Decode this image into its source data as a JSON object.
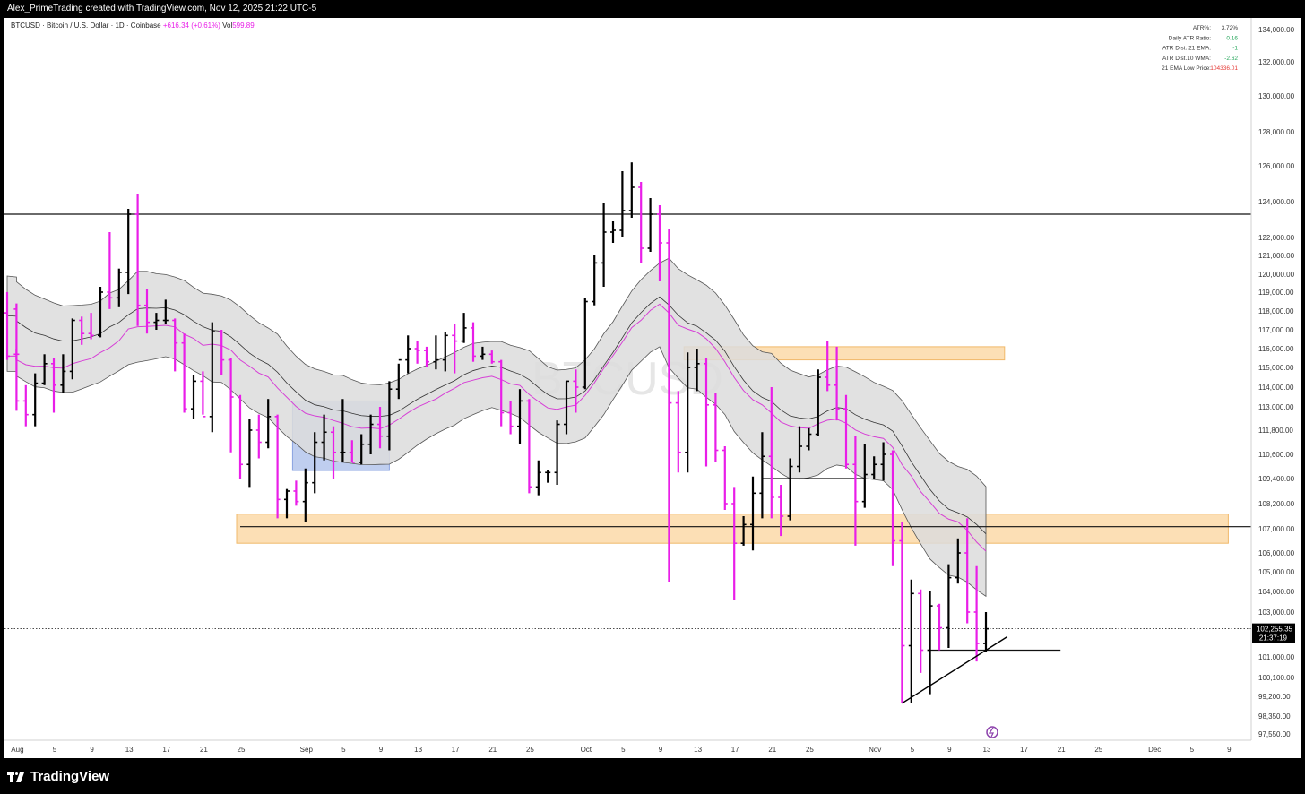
{
  "top_caption": "Alex_PrimeTrading created with TradingView.com, Nov 12, 2025 21:22 UTC-5",
  "footer_brand": "TradingView",
  "header": {
    "symbol": "BTCUSD · Bitcoin / U.S. Dollar · 1D · Coinbase",
    "change": "+616.34 (+0.61%)",
    "vol_label": "Vol",
    "vol_value": "599.89"
  },
  "watermark": "BTCUSD",
  "atr_table": [
    {
      "label": "ATR%:",
      "value": "3.72%",
      "color": "#333333"
    },
    {
      "label": "Daily ATR Ratio:",
      "value": "0.16",
      "color": "#26a65b"
    },
    {
      "label": "ATR Dist. 21 EMA:",
      "value": "-1",
      "color": "#26a65b"
    },
    {
      "label": "ATR Dist.10 WMA:",
      "value": "-2.62",
      "color": "#26a65b"
    },
    {
      "label": "21 EMA Low Price:",
      "value": "104336.01",
      "color": "#e53935"
    }
  ],
  "price_axis": {
    "ticks": [
      "134,000.00",
      "132,000.00",
      "130,000.00",
      "128,000.00",
      "126,000.00",
      "124,000.00",
      "122,000.00",
      "121,000.00",
      "120,000.00",
      "119,000.00",
      "118,000.00",
      "117,000.00",
      "116,000.00",
      "115,000.00",
      "114,000.00",
      "113,000.00",
      "111,800.00",
      "110,600.00",
      "109,400.00",
      "108,200.00",
      "107,000.00",
      "106,000.00",
      "105,000.00",
      "104,000.00",
      "103,000.00",
      "101,000.00",
      "100,100.00",
      "99,200.00",
      "98,350.00",
      "97,550.00"
    ],
    "current_price": "102,255.35",
    "countdown": "21:37:19"
  },
  "time_axis": {
    "ticks": [
      "Aug",
      "5",
      "9",
      "13",
      "17",
      "21",
      "25",
      "Sep",
      "5",
      "9",
      "13",
      "17",
      "21",
      "25",
      "Oct",
      "5",
      "9",
      "13",
      "17",
      "21",
      "25",
      "Nov",
      "5",
      "9",
      "13",
      "17",
      "21",
      "25",
      "Dec",
      "5",
      "9"
    ]
  },
  "colors": {
    "bullish": "#000000",
    "bearish": "#e91ee8",
    "ema": "#d63fd6",
    "band_fill": "#dcdcdc",
    "zone_orange": "#fbd9a8",
    "zone_blue": "#a9bdea",
    "accent_purple": "#8e44ad"
  },
  "chart_data": {
    "type": "ohlc",
    "title": "BTCUSD · Bitcoin / U.S. Dollar · 1D · Coinbase",
    "xlabel": "",
    "ylabel": "",
    "ylim": [
      97550,
      134000
    ],
    "y_scale": "log-style (non-uniform ticks)",
    "grid": false,
    "legend": "none",
    "bars": [
      {
        "date": "Jul 30",
        "o": 117900,
        "h": 119000,
        "l": 115400,
        "c": 115600
      },
      {
        "date": "Jul 31",
        "o": 118100,
        "h": 118400,
        "l": 115400,
        "c": 115700
      },
      {
        "date": "Aug 1",
        "o": 115700,
        "h": 116000,
        "l": 112800,
        "c": 113300
      },
      {
        "date": "Aug 2",
        "o": 113300,
        "h": 114100,
        "l": 112000,
        "c": 112600
      },
      {
        "date": "Aug 3",
        "o": 112600,
        "h": 114700,
        "l": 112000,
        "c": 114200
      },
      {
        "date": "Aug 4",
        "o": 114200,
        "h": 115700,
        "l": 114100,
        "c": 115200
      },
      {
        "date": "Aug 5",
        "o": 115200,
        "h": 115500,
        "l": 112700,
        "c": 114100
      },
      {
        "date": "Aug 6",
        "o": 114100,
        "h": 115700,
        "l": 113700,
        "c": 114800
      },
      {
        "date": "Aug 7",
        "o": 114800,
        "h": 117600,
        "l": 114400,
        "c": 117500
      },
      {
        "date": "Aug 8",
        "o": 117500,
        "h": 117700,
        "l": 116200,
        "c": 116800
      },
      {
        "date": "Aug 9",
        "o": 116800,
        "h": 117900,
        "l": 116500,
        "c": 116700
      },
      {
        "date": "Aug 10",
        "o": 116700,
        "h": 119300,
        "l": 116600,
        "c": 119000
      },
      {
        "date": "Aug 11",
        "o": 119000,
        "h": 122300,
        "l": 118100,
        "c": 118700
      },
      {
        "date": "Aug 12",
        "o": 118700,
        "h": 120300,
        "l": 118200,
        "c": 120100
      },
      {
        "date": "Aug 13",
        "o": 120100,
        "h": 123600,
        "l": 118900,
        "c": 123300
      },
      {
        "date": "Aug 14",
        "o": 123300,
        "h": 124400,
        "l": 117200,
        "c": 118300
      },
      {
        "date": "Aug 15",
        "o": 118300,
        "h": 119200,
        "l": 116800,
        "c": 117400
      },
      {
        "date": "Aug 16",
        "o": 117400,
        "h": 117900,
        "l": 117000,
        "c": 117500
      },
      {
        "date": "Aug 17",
        "o": 117500,
        "h": 118600,
        "l": 117300,
        "c": 117500
      },
      {
        "date": "Aug 18",
        "o": 117500,
        "h": 117600,
        "l": 114800,
        "c": 116300
      },
      {
        "date": "Aug 19",
        "o": 116300,
        "h": 116800,
        "l": 112700,
        "c": 112900
      },
      {
        "date": "Aug 20",
        "o": 112900,
        "h": 114600,
        "l": 112400,
        "c": 114300
      },
      {
        "date": "Aug 21",
        "o": 114300,
        "h": 114800,
        "l": 112600,
        "c": 112500
      },
      {
        "date": "Aug 22",
        "o": 112500,
        "h": 117400,
        "l": 111700,
        "c": 116900
      },
      {
        "date": "Aug 23",
        "o": 116900,
        "h": 117000,
        "l": 114600,
        "c": 115400
      },
      {
        "date": "Aug 24",
        "o": 115400,
        "h": 115500,
        "l": 110700,
        "c": 113500
      },
      {
        "date": "Aug 25",
        "o": 113500,
        "h": 113600,
        "l": 109400,
        "c": 110100
      },
      {
        "date": "Aug 26",
        "o": 110100,
        "h": 112400,
        "l": 109000,
        "c": 111800
      },
      {
        "date": "Aug 27",
        "o": 111800,
        "h": 112600,
        "l": 110400,
        "c": 111200
      },
      {
        "date": "Aug 28",
        "o": 111200,
        "h": 113400,
        "l": 110900,
        "c": 112500
      },
      {
        "date": "Aug 29",
        "o": 112500,
        "h": 112600,
        "l": 107500,
        "c": 108400
      },
      {
        "date": "Aug 30",
        "o": 108400,
        "h": 108900,
        "l": 107500,
        "c": 108800
      },
      {
        "date": "Aug 31",
        "o": 108800,
        "h": 109300,
        "l": 108100,
        "c": 108300
      },
      {
        "date": "Sep 1",
        "o": 108300,
        "h": 109900,
        "l": 107300,
        "c": 109200
      },
      {
        "date": "Sep 2",
        "o": 109200,
        "h": 111700,
        "l": 108700,
        "c": 111200
      },
      {
        "date": "Sep 3",
        "o": 111200,
        "h": 112600,
        "l": 110300,
        "c": 111700
      },
      {
        "date": "Sep 4",
        "o": 111700,
        "h": 112000,
        "l": 109400,
        "c": 110700
      },
      {
        "date": "Sep 5",
        "o": 110700,
        "h": 113400,
        "l": 110200,
        "c": 110700
      },
      {
        "date": "Sep 6",
        "o": 110700,
        "h": 111300,
        "l": 110200,
        "c": 110200
      },
      {
        "date": "Sep 7",
        "o": 110200,
        "h": 111600,
        "l": 110100,
        "c": 111100
      },
      {
        "date": "Sep 8",
        "o": 111100,
        "h": 112600,
        "l": 110600,
        "c": 112100
      },
      {
        "date": "Sep 9",
        "o": 112100,
        "h": 113000,
        "l": 110900,
        "c": 111500
      },
      {
        "date": "Sep 10",
        "o": 111500,
        "h": 114300,
        "l": 110800,
        "c": 113900
      },
      {
        "date": "Sep 11",
        "o": 113900,
        "h": 115200,
        "l": 113400,
        "c": 115400
      },
      {
        "date": "Sep 12",
        "o": 115400,
        "h": 116700,
        "l": 114700,
        "c": 116000
      },
      {
        "date": "Sep 13",
        "o": 116000,
        "h": 116400,
        "l": 115200,
        "c": 115900
      },
      {
        "date": "Sep 14",
        "o": 115900,
        "h": 116100,
        "l": 115000,
        "c": 115300
      },
      {
        "date": "Sep 15",
        "o": 115300,
        "h": 116700,
        "l": 114900,
        "c": 115400
      },
      {
        "date": "Sep 16",
        "o": 115400,
        "h": 116900,
        "l": 114800,
        "c": 116700
      },
      {
        "date": "Sep 17",
        "o": 116700,
        "h": 117300,
        "l": 114700,
        "c": 116400
      },
      {
        "date": "Sep 18",
        "o": 116400,
        "h": 117900,
        "l": 116300,
        "c": 117100
      },
      {
        "date": "Sep 19",
        "o": 117100,
        "h": 117400,
        "l": 115300,
        "c": 115600
      },
      {
        "date": "Sep 20",
        "o": 115600,
        "h": 116100,
        "l": 115400,
        "c": 115700
      },
      {
        "date": "Sep 21",
        "o": 115700,
        "h": 115900,
        "l": 115200,
        "c": 115300
      },
      {
        "date": "Sep 22",
        "o": 115300,
        "h": 115400,
        "l": 112000,
        "c": 112700
      },
      {
        "date": "Sep 23",
        "o": 112700,
        "h": 113300,
        "l": 111600,
        "c": 112000
      },
      {
        "date": "Sep 24",
        "o": 112000,
        "h": 113900,
        "l": 111100,
        "c": 113300
      },
      {
        "date": "Sep 25",
        "o": 113300,
        "h": 113400,
        "l": 108700,
        "c": 109000
      },
      {
        "date": "Sep 26",
        "o": 109000,
        "h": 110300,
        "l": 108600,
        "c": 109700
      },
      {
        "date": "Sep 27",
        "o": 109700,
        "h": 109800,
        "l": 109200,
        "c": 109700
      },
      {
        "date": "Sep 28",
        "o": 109700,
        "h": 112300,
        "l": 109100,
        "c": 112100
      },
      {
        "date": "Sep 29",
        "o": 112100,
        "h": 114300,
        "l": 111600,
        "c": 114300
      },
      {
        "date": "Sep 30",
        "o": 114300,
        "h": 114900,
        "l": 112700,
        "c": 114000
      },
      {
        "date": "Oct 1",
        "o": 114000,
        "h": 118700,
        "l": 113900,
        "c": 118500
      },
      {
        "date": "Oct 2",
        "o": 118500,
        "h": 121000,
        "l": 118300,
        "c": 120600
      },
      {
        "date": "Oct 3",
        "o": 120600,
        "h": 123900,
        "l": 119300,
        "c": 122300
      },
      {
        "date": "Oct 4",
        "o": 122300,
        "h": 122900,
        "l": 121700,
        "c": 122400
      },
      {
        "date": "Oct 5",
        "o": 122400,
        "h": 125700,
        "l": 122000,
        "c": 123500
      },
      {
        "date": "Oct 6",
        "o": 123500,
        "h": 126200,
        "l": 123100,
        "c": 124800
      },
      {
        "date": "Oct 7",
        "o": 124800,
        "h": 125100,
        "l": 120600,
        "c": 121400
      },
      {
        "date": "Oct 8",
        "o": 121400,
        "h": 124200,
        "l": 121200,
        "c": 123300
      },
      {
        "date": "Oct 9",
        "o": 123300,
        "h": 123800,
        "l": 119600,
        "c": 121700
      },
      {
        "date": "Oct 10",
        "o": 121700,
        "h": 122500,
        "l": 104500,
        "c": 113200
      },
      {
        "date": "Oct 11",
        "o": 113200,
        "h": 113800,
        "l": 109700,
        "c": 110700
      },
      {
        "date": "Oct 12",
        "o": 110700,
        "h": 115800,
        "l": 109700,
        "c": 115000
      },
      {
        "date": "Oct 13",
        "o": 115000,
        "h": 116000,
        "l": 113800,
        "c": 115200
      },
      {
        "date": "Oct 14",
        "o": 115200,
        "h": 115500,
        "l": 110000,
        "c": 113100
      },
      {
        "date": "Oct 15",
        "o": 113100,
        "h": 113700,
        "l": 110200,
        "c": 110800
      },
      {
        "date": "Oct 16",
        "o": 110800,
        "h": 111000,
        "l": 107900,
        "c": 108200
      },
      {
        "date": "Oct 17",
        "o": 108200,
        "h": 109000,
        "l": 103600,
        "c": 106400
      },
      {
        "date": "Oct 18",
        "o": 106400,
        "h": 107600,
        "l": 106300,
        "c": 107200
      },
      {
        "date": "Oct 19",
        "o": 107200,
        "h": 109500,
        "l": 106100,
        "c": 108700
      },
      {
        "date": "Oct 20",
        "o": 108700,
        "h": 111700,
        "l": 107500,
        "c": 110500
      },
      {
        "date": "Oct 21",
        "o": 110500,
        "h": 114000,
        "l": 107500,
        "c": 108500
      },
      {
        "date": "Oct 22",
        "o": 108500,
        "h": 109100,
        "l": 106700,
        "c": 107600
      },
      {
        "date": "Oct 23",
        "o": 107600,
        "h": 110400,
        "l": 107400,
        "c": 110000
      },
      {
        "date": "Oct 24",
        "o": 110000,
        "h": 112000,
        "l": 109700,
        "c": 111000
      },
      {
        "date": "Oct 25",
        "o": 111000,
        "h": 111900,
        "l": 110800,
        "c": 111600
      },
      {
        "date": "Oct 26",
        "o": 111600,
        "h": 114900,
        "l": 111500,
        "c": 114500
      },
      {
        "date": "Oct 27",
        "o": 114500,
        "h": 116400,
        "l": 113800,
        "c": 114100
      },
      {
        "date": "Oct 28",
        "o": 114100,
        "h": 116100,
        "l": 112300,
        "c": 112900
      },
      {
        "date": "Oct 29",
        "o": 112900,
        "h": 113600,
        "l": 109900,
        "c": 110100
      },
      {
        "date": "Oct 30",
        "o": 110100,
        "h": 111500,
        "l": 106300,
        "c": 108300
      },
      {
        "date": "Oct 31",
        "o": 108300,
        "h": 111100,
        "l": 108000,
        "c": 109600
      },
      {
        "date": "Nov 1",
        "o": 109600,
        "h": 110500,
        "l": 109400,
        "c": 110100
      },
      {
        "date": "Nov 2",
        "o": 110100,
        "h": 111200,
        "l": 109300,
        "c": 110600
      },
      {
        "date": "Nov 3",
        "o": 110600,
        "h": 110800,
        "l": 105300,
        "c": 106500
      },
      {
        "date": "Nov 4",
        "o": 106500,
        "h": 107300,
        "l": 98900,
        "c": 101500
      },
      {
        "date": "Nov 5",
        "o": 101500,
        "h": 104600,
        "l": 98900,
        "c": 103900
      },
      {
        "date": "Nov 6",
        "o": 103900,
        "h": 104100,
        "l": 100300,
        "c": 101300
      },
      {
        "date": "Nov 7",
        "o": 101300,
        "h": 104000,
        "l": 99300,
        "c": 103300
      },
      {
        "date": "Nov 8",
        "o": 103300,
        "h": 103400,
        "l": 101300,
        "c": 102300
      },
      {
        "date": "Nov 9",
        "o": 102300,
        "h": 105400,
        "l": 101400,
        "c": 104700
      },
      {
        "date": "Nov 10",
        "o": 104700,
        "h": 106600,
        "l": 104400,
        "c": 106000
      },
      {
        "date": "Nov 11",
        "o": 106000,
        "h": 107500,
        "l": 102500,
        "c": 103000
      },
      {
        "date": "Nov 12",
        "o": 103000,
        "h": 105300,
        "l": 100800,
        "c": 101600
      },
      {
        "date": "Nov 13",
        "o": 101600,
        "h": 103000,
        "l": 101200,
        "c": 102255
      }
    ],
    "zones": [
      {
        "type": "orange",
        "from": "Aug 25",
        "to": "Dec 9",
        "low": 106400,
        "high": 107700
      },
      {
        "type": "orange",
        "from": "Oct 12",
        "to": "Nov 15",
        "low": 115400,
        "high": 116100
      },
      {
        "type": "blue",
        "from": "Aug 31",
        "to": "Sep 10",
        "low": 109800,
        "high": 113300
      }
    ],
    "horizontal_lines": [
      {
        "price": 123300,
        "style": "solid"
      },
      {
        "price": 107100,
        "style": "solid",
        "from": "Aug 25"
      },
      {
        "price": 102255,
        "style": "dotted"
      },
      {
        "price": 101300,
        "style": "solid",
        "from": "Nov 7",
        "to": "Nov 21"
      },
      {
        "price": 109400,
        "style": "solid",
        "from": "Oct 20",
        "to": "Oct 31"
      }
    ],
    "trendline": {
      "from": [
        "Nov 4",
        98900
      ],
      "to": [
        "Nov 15",
        101900
      ]
    }
  }
}
